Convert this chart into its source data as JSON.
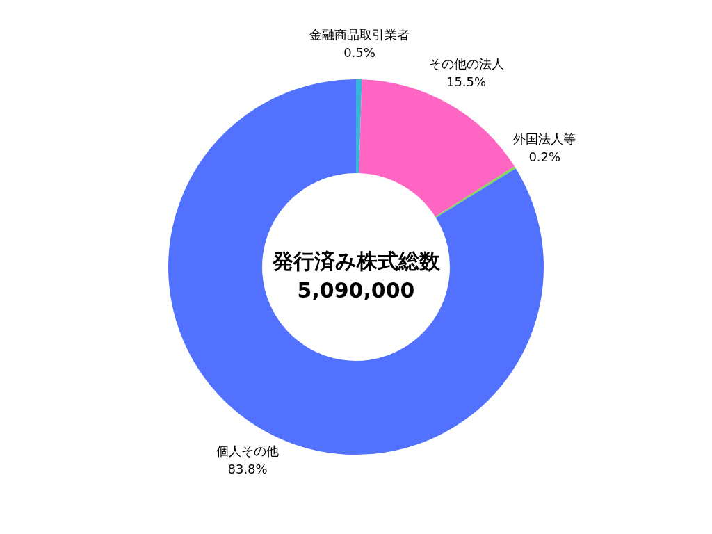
{
  "chart_data": {
    "type": "donut",
    "title": "発行済み株式総数",
    "subtitle": "5,090,000",
    "categories": [
      "金融商品取引業者",
      "その他の法人",
      "外国法人等",
      "個人その他"
    ],
    "values": [
      0.5,
      15.5,
      0.2,
      83.8
    ],
    "colors": [
      "#38b6d8",
      "#ff66c4",
      "#7ed957",
      "#5271ff"
    ],
    "value_labels": [
      "0.5%",
      "15.5%",
      "0.2%",
      "83.8%"
    ],
    "legend": false
  }
}
